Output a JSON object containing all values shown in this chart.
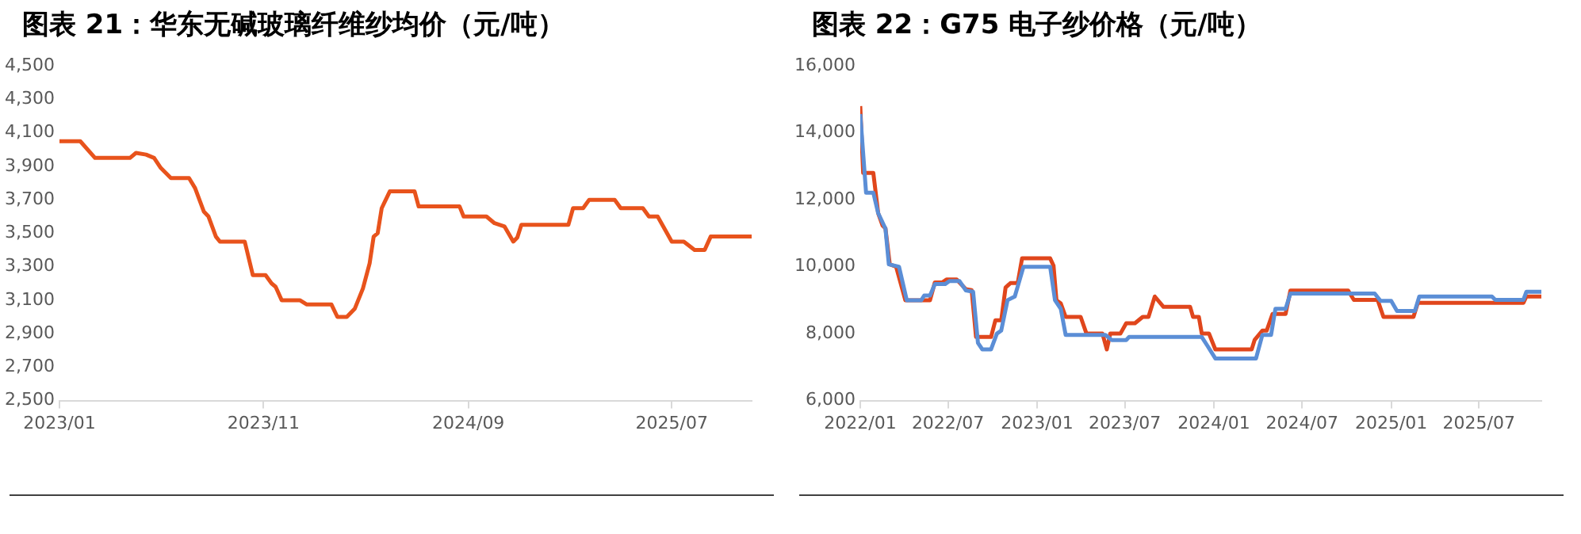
{
  "chart_data": [
    {
      "type": "line",
      "title": "图表 21：华东无碱玻璃纤维纱均价（元/吨）",
      "grid": false,
      "legend": false,
      "marker": "none",
      "line_style": "solid",
      "xlim": [
        "2023-01-01",
        "2025-10-28"
      ],
      "xticks": [
        {
          "value": "2023-01",
          "label": "2023/01"
        },
        {
          "value": "2023-11",
          "label": "2023/11"
        },
        {
          "value": "2024-09",
          "label": "2024/09"
        },
        {
          "value": "2025-07",
          "label": "2025/07"
        }
      ],
      "ylim": [
        2500,
        4500
      ],
      "yticks": [
        {
          "value": 2500,
          "label": "2,500"
        },
        {
          "value": 2700,
          "label": "2,700"
        },
        {
          "value": 2900,
          "label": "2,900"
        },
        {
          "value": 3100,
          "label": "3,100"
        },
        {
          "value": 3300,
          "label": "3,300"
        },
        {
          "value": 3500,
          "label": "3,500"
        },
        {
          "value": 3700,
          "label": "3,700"
        },
        {
          "value": 3900,
          "label": "3,900"
        },
        {
          "value": 4100,
          "label": "4,100"
        },
        {
          "value": 4300,
          "label": "4,300"
        },
        {
          "value": 4500,
          "label": "4,500"
        }
      ],
      "series": [
        {
          "color": "#e8531c",
          "x": [
            "2023-01-01",
            "2023-02-01",
            "2023-02-23",
            "2023-04-16",
            "2023-04-25",
            "2023-05-10",
            "2023-05-22",
            "2023-06-01",
            "2023-06-16",
            "2023-07-13",
            "2023-07-22",
            "2023-08-04",
            "2023-08-11",
            "2023-08-22",
            "2023-08-28",
            "2023-10-04",
            "2023-10-16",
            "2023-11-04",
            "2023-11-13",
            "2023-11-19",
            "2023-11-28",
            "2023-12-25",
            "2024-01-04",
            "2024-02-10",
            "2024-02-19",
            "2024-03-04",
            "2024-03-16",
            "2024-03-28",
            "2024-04-07",
            "2024-04-13",
            "2024-04-19",
            "2024-04-25",
            "2024-05-07",
            "2024-06-13",
            "2024-06-19",
            "2024-08-19",
            "2024-08-25",
            "2024-09-28",
            "2024-10-10",
            "2024-10-25",
            "2024-11-07",
            "2024-11-13",
            "2024-11-19",
            "2025-01-28",
            "2025-02-04",
            "2025-02-19",
            "2025-02-28",
            "2025-04-07",
            "2025-04-16",
            "2025-05-19",
            "2025-05-28",
            "2025-06-10",
            "2025-07-01",
            "2025-07-19",
            "2025-08-04",
            "2025-08-19",
            "2025-08-28",
            "2025-10-28"
          ],
          "values": [
            4050,
            4050,
            3950,
            3950,
            3980,
            3970,
            3950,
            3890,
            3830,
            3830,
            3770,
            3630,
            3600,
            3480,
            3450,
            3450,
            3250,
            3250,
            3200,
            3180,
            3100,
            3100,
            3075,
            3075,
            3000,
            3000,
            3050,
            3170,
            3320,
            3480,
            3500,
            3650,
            3750,
            3750,
            3660,
            3660,
            3600,
            3600,
            3560,
            3540,
            3450,
            3475,
            3550,
            3550,
            3650,
            3650,
            3700,
            3700,
            3650,
            3650,
            3600,
            3600,
            3450,
            3450,
            3400,
            3400,
            3480,
            3480
          ]
        }
      ]
    },
    {
      "type": "line",
      "title": "图表 22：G75 电子纱价格（元/吨）",
      "grid": false,
      "legend": false,
      "marker": "none",
      "line_style": "solid",
      "xlim": [
        "2022-01-01",
        "2025-11-07"
      ],
      "xticks": [
        {
          "value": "2022-01",
          "label": "2022/01"
        },
        {
          "value": "2022-07",
          "label": "2022/07"
        },
        {
          "value": "2023-01",
          "label": "2023/01"
        },
        {
          "value": "2023-07",
          "label": "2023/07"
        },
        {
          "value": "2024-01",
          "label": "2024/01"
        },
        {
          "value": "2024-07",
          "label": "2024/07"
        },
        {
          "value": "2025-01",
          "label": "2025/01"
        },
        {
          "value": "2025-07",
          "label": "2025/07"
        }
      ],
      "ylim": [
        6000,
        16000
      ],
      "yticks": [
        {
          "value": 6000,
          "label": "6,000"
        },
        {
          "value": 8000,
          "label": "8,000"
        },
        {
          "value": 10000,
          "label": "10,000"
        },
        {
          "value": 12000,
          "label": "12,000"
        },
        {
          "value": 14000,
          "label": "14,000"
        },
        {
          "value": 16000,
          "label": "16,000"
        }
      ],
      "series": [
        {
          "color": "#5b8ed6",
          "x": [
            "2022-01-01",
            "2022-01-13",
            "2022-01-28",
            "2022-02-07",
            "2022-02-22",
            "2022-03-01",
            "2022-03-22",
            "2022-04-07",
            "2022-05-07",
            "2022-05-13",
            "2022-05-25",
            "2022-06-04",
            "2022-06-25",
            "2022-07-04",
            "2022-07-25",
            "2022-08-07",
            "2022-08-22",
            "2022-09-01",
            "2022-09-10",
            "2022-09-28",
            "2022-10-10",
            "2022-10-19",
            "2022-11-01",
            "2022-11-16",
            "2022-12-04",
            "2023-01-28",
            "2023-02-07",
            "2023-02-19",
            "2023-03-01",
            "2023-05-22",
            "2023-06-04",
            "2023-07-04",
            "2023-07-10",
            "2023-12-07",
            "2023-12-19",
            "2024-01-04",
            "2024-03-28",
            "2024-04-10",
            "2024-04-28",
            "2024-05-07",
            "2024-05-28",
            "2024-06-07",
            "2024-11-28",
            "2024-12-10",
            "2025-01-01",
            "2025-01-13",
            "2025-02-19",
            "2025-02-28",
            "2025-07-28",
            "2025-08-04",
            "2025-10-01",
            "2025-10-07",
            "2025-11-07"
          ],
          "values": [
            14560,
            12210,
            12210,
            11600,
            11140,
            10070,
            10000,
            9000,
            9000,
            9140,
            9140,
            9480,
            9480,
            9570,
            9570,
            9290,
            9250,
            7720,
            7530,
            7530,
            8000,
            8090,
            9000,
            9110,
            10000,
            10000,
            9000,
            8740,
            7960,
            7960,
            7810,
            7810,
            7900,
            7900,
            7630,
            7260,
            7260,
            7960,
            7960,
            8740,
            8740,
            9200,
            9200,
            8980,
            8980,
            8680,
            8680,
            9110,
            9110,
            9010,
            9010,
            9250,
            9250
          ]
        },
        {
          "color": "#e0461c",
          "x": [
            "2022-01-01",
            "2022-01-07",
            "2022-01-28",
            "2022-02-07",
            "2022-02-16",
            "2022-02-22",
            "2022-03-03",
            "2022-03-16",
            "2022-04-04",
            "2022-05-25",
            "2022-06-04",
            "2022-06-19",
            "2022-06-28",
            "2022-07-19",
            "2022-08-07",
            "2022-08-19",
            "2022-08-28",
            "2022-09-28",
            "2022-10-07",
            "2022-10-19",
            "2022-10-28",
            "2022-11-07",
            "2022-11-22",
            "2022-12-01",
            "2023-01-28",
            "2023-02-04",
            "2023-02-10",
            "2023-02-19",
            "2023-03-01",
            "2023-04-01",
            "2023-04-13",
            "2023-05-16",
            "2023-05-25",
            "2023-06-01",
            "2023-06-22",
            "2023-07-04",
            "2023-07-22",
            "2023-08-07",
            "2023-08-19",
            "2023-09-01",
            "2023-09-19",
            "2023-11-13",
            "2023-11-19",
            "2023-12-01",
            "2023-12-07",
            "2023-12-22",
            "2024-01-04",
            "2024-03-19",
            "2024-03-25",
            "2024-04-10",
            "2024-04-19",
            "2024-05-01",
            "2024-05-28",
            "2024-06-07",
            "2024-10-04",
            "2024-10-16",
            "2024-12-04",
            "2024-12-16",
            "2025-02-16",
            "2025-02-25",
            "2025-10-01",
            "2025-10-07",
            "2025-11-07"
          ],
          "values": [
            14800,
            12800,
            12800,
            11600,
            11230,
            11150,
            10070,
            10000,
            9000,
            9000,
            9530,
            9530,
            9620,
            9620,
            9330,
            9300,
            7900,
            7900,
            8400,
            8400,
            9380,
            9510,
            9510,
            10250,
            10250,
            10030,
            9000,
            8900,
            8500,
            8500,
            8000,
            8000,
            7530,
            8000,
            8000,
            8310,
            8310,
            8500,
            8500,
            9110,
            8800,
            8800,
            8500,
            8500,
            8000,
            8000,
            7530,
            7530,
            7810,
            8090,
            8090,
            8590,
            8590,
            9290,
            9290,
            9010,
            9010,
            8500,
            8500,
            8920,
            8920,
            9110,
            9110
          ]
        }
      ]
    }
  ]
}
